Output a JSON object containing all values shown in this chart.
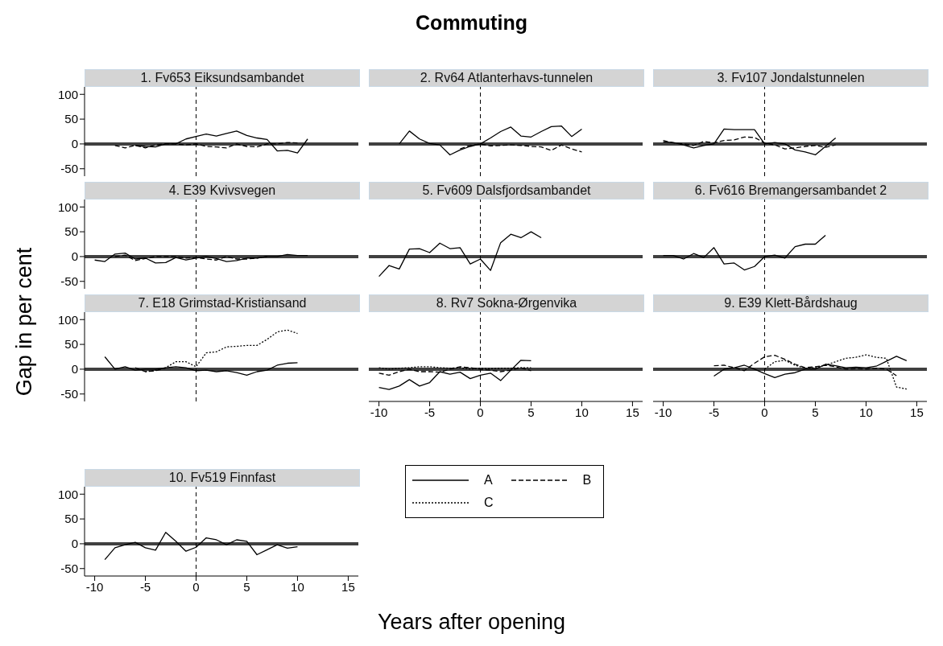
{
  "chart_data": [
    {
      "type": "other",
      "title": "Commuting",
      "xlabel": "Years after opening",
      "ylabel": "Gap in per cent"
    },
    {
      "type": "line",
      "title": "1. Fv653 Eiksundsambandet",
      "xlim": [
        -11,
        16
      ],
      "ylim": [
        -65,
        115
      ],
      "xticks": [
        -10,
        -5,
        0,
        5,
        10,
        15
      ],
      "yticks": [
        -50,
        0,
        50,
        100
      ],
      "tick_labels": "y",
      "ref_lines": [
        {
          "axis": "y",
          "value": 0,
          "color": "#404040",
          "line_style": "solid"
        },
        {
          "axis": "x",
          "value": 0,
          "color": "#000000",
          "line_style": "dashed"
        }
      ],
      "series": [
        {
          "color": "#000000",
          "line_style": "solid",
          "x": [
            -6,
            -5,
            -4,
            -3,
            -2,
            -1,
            0,
            1,
            2,
            3,
            4,
            5,
            6,
            7,
            8,
            9,
            10,
            11
          ],
          "values": [
            -3,
            -5,
            -6,
            0,
            0,
            10,
            15,
            20,
            16,
            21,
            26,
            17,
            12,
            9,
            -14,
            -13,
            -18,
            10
          ]
        },
        {
          "color": "#000000",
          "line_style": "dashed",
          "x": [
            -8,
            -7,
            -6,
            -5,
            -4,
            -3,
            -2,
            -1,
            0,
            1,
            2,
            3,
            4,
            5,
            6,
            7,
            8,
            9,
            10
          ],
          "values": [
            -3,
            -8,
            -3,
            -8,
            -2,
            0,
            0,
            -2,
            0,
            -5,
            -6,
            -8,
            0,
            -5,
            -6,
            0,
            0,
            3,
            2
          ]
        }
      ]
    },
    {
      "type": "line",
      "title": "2. Rv64 Atlanterhavs-tunnelen",
      "xlim": [
        -11,
        16
      ],
      "ylim": [
        -65,
        115
      ],
      "xticks": [
        -10,
        -5,
        0,
        5,
        10,
        15
      ],
      "yticks": [
        -50,
        0,
        50,
        100
      ],
      "tick_labels": false,
      "ref_lines": [
        {
          "axis": "y",
          "value": 0,
          "color": "#404040",
          "line_style": "solid"
        },
        {
          "axis": "x",
          "value": 0,
          "color": "#000000",
          "line_style": "dashed"
        }
      ],
      "series": [
        {
          "color": "#000000",
          "line_style": "solid",
          "x": [
            -8,
            -7,
            -6,
            -5,
            -4,
            -3,
            -2,
            -1,
            0,
            1,
            2,
            3,
            4,
            5,
            6,
            7,
            8,
            9,
            10
          ],
          "values": [
            0,
            26,
            10,
            1,
            -2,
            -22,
            -12,
            -5,
            0,
            12,
            25,
            34,
            16,
            14,
            25,
            35,
            36,
            15,
            30
          ]
        },
        {
          "color": "#000000",
          "line_style": "dashed",
          "x": [
            -2,
            -1,
            0,
            1,
            2,
            3,
            4,
            5,
            6,
            7,
            8,
            9,
            10
          ],
          "values": [
            -10,
            -3,
            0,
            -4,
            -3,
            -2,
            -3,
            -5,
            -6,
            -13,
            -2,
            -10,
            -16
          ]
        }
      ]
    },
    {
      "type": "line",
      "title": "3. Fv107 Jondalstunnelen",
      "xlim": [
        -11,
        16
      ],
      "ylim": [
        -65,
        115
      ],
      "xticks": [
        -10,
        -5,
        0,
        5,
        10,
        15
      ],
      "yticks": [
        -50,
        0,
        50,
        100
      ],
      "tick_labels": false,
      "ref_lines": [
        {
          "axis": "y",
          "value": 0,
          "color": "#404040",
          "line_style": "solid"
        },
        {
          "axis": "x",
          "value": 0,
          "color": "#000000",
          "line_style": "dashed"
        }
      ],
      "series": [
        {
          "color": "#000000",
          "line_style": "solid",
          "x": [
            -10,
            -9,
            -8,
            -7,
            -6,
            -5,
            -4,
            -3,
            -2,
            -1,
            0,
            1,
            2,
            3,
            4,
            5,
            6,
            7
          ],
          "values": [
            4,
            3,
            -2,
            -8,
            -3,
            0,
            30,
            29,
            29,
            29,
            0,
            3,
            0,
            -12,
            -16,
            -22,
            -5,
            12
          ]
        },
        {
          "color": "#000000",
          "line_style": "dashed",
          "x": [
            -10,
            -9,
            -8,
            -7,
            -6,
            -5,
            -4,
            -3,
            -2,
            -1,
            0,
            1,
            2,
            3,
            4,
            5,
            6,
            7
          ],
          "values": [
            7,
            2,
            0,
            -3,
            5,
            2,
            7,
            8,
            14,
            13,
            2,
            -2,
            -10,
            -8,
            -5,
            -3,
            -7,
            -2
          ]
        }
      ]
    },
    {
      "type": "line",
      "title": "4. E39 Kvivsvegen",
      "xlim": [
        -11,
        16
      ],
      "ylim": [
        -65,
        115
      ],
      "xticks": [
        -10,
        -5,
        0,
        5,
        10,
        15
      ],
      "yticks": [
        -50,
        0,
        50,
        100
      ],
      "tick_labels": "y",
      "ref_lines": [
        {
          "axis": "y",
          "value": 0,
          "color": "#404040",
          "line_style": "solid"
        },
        {
          "axis": "x",
          "value": 0,
          "color": "#000000",
          "line_style": "dashed"
        }
      ],
      "series": [
        {
          "color": "#000000",
          "line_style": "solid",
          "x": [
            -10,
            -9,
            -8,
            -7,
            -6,
            -5,
            -4,
            -3,
            -2,
            -1,
            0,
            1,
            2,
            3,
            4,
            5,
            6,
            7,
            8,
            9,
            10,
            11
          ],
          "values": [
            -7,
            -10,
            5,
            7,
            -5,
            -3,
            -13,
            -12,
            -2,
            -7,
            -3,
            0,
            -4,
            -10,
            -8,
            -3,
            -3,
            0,
            0,
            4,
            2,
            2
          ]
        },
        {
          "color": "#000000",
          "line_style": "dashed",
          "x": [
            -8,
            -7,
            -6,
            -5,
            -4,
            -3,
            -2,
            -1,
            0,
            1,
            2,
            3,
            4,
            5,
            6,
            7
          ],
          "values": [
            0,
            3,
            -8,
            -4,
            0,
            0,
            0,
            -3,
            -2,
            -5,
            -7,
            0,
            -5,
            -5,
            -3,
            0
          ]
        }
      ]
    },
    {
      "type": "line",
      "title": "5. Fv609 Dalsfjordsambandet",
      "xlim": [
        -11,
        16
      ],
      "ylim": [
        -65,
        115
      ],
      "xticks": [
        -10,
        -5,
        0,
        5,
        10,
        15
      ],
      "yticks": [
        -50,
        0,
        50,
        100
      ],
      "tick_labels": false,
      "ref_lines": [
        {
          "axis": "y",
          "value": 0,
          "color": "#404040",
          "line_style": "solid"
        },
        {
          "axis": "x",
          "value": 0,
          "color": "#000000",
          "line_style": "dashed"
        }
      ],
      "series": [
        {
          "color": "#000000",
          "line_style": "solid",
          "x": [
            -10,
            -9,
            -8,
            -7,
            -6,
            -5,
            -4,
            -3,
            -2,
            -1,
            0,
            1,
            2,
            3,
            4,
            5,
            6
          ],
          "values": [
            -40,
            -18,
            -25,
            15,
            16,
            8,
            27,
            16,
            18,
            -15,
            -5,
            -28,
            28,
            45,
            38,
            50,
            38
          ]
        }
      ]
    },
    {
      "type": "line",
      "title": "6. Fv616 Bremangersambandet 2",
      "xlim": [
        -11,
        16
      ],
      "ylim": [
        -65,
        115
      ],
      "xticks": [
        -10,
        -5,
        0,
        5,
        10,
        15
      ],
      "yticks": [
        -50,
        0,
        50,
        100
      ],
      "tick_labels": false,
      "ref_lines": [
        {
          "axis": "y",
          "value": 0,
          "color": "#404040",
          "line_style": "solid"
        },
        {
          "axis": "x",
          "value": 0,
          "color": "#000000",
          "line_style": "dashed"
        }
      ],
      "series": [
        {
          "color": "#000000",
          "line_style": "solid",
          "x": [
            -10,
            -9,
            -8,
            -7,
            -6,
            -5,
            -4,
            -3,
            -2,
            -1,
            0,
            1,
            2,
            3,
            4,
            5,
            6
          ],
          "values": [
            2,
            2,
            -5,
            6,
            -2,
            18,
            -15,
            -13,
            -27,
            -20,
            0,
            3,
            -3,
            20,
            25,
            25,
            43
          ]
        }
      ]
    },
    {
      "type": "line",
      "title": "7. E18 Grimstad-Kristiansand",
      "xlim": [
        -11,
        16
      ],
      "ylim": [
        -65,
        115
      ],
      "xticks": [
        -10,
        -5,
        0,
        5,
        10,
        15
      ],
      "yticks": [
        -50,
        0,
        50,
        100
      ],
      "tick_labels": "y",
      "ref_lines": [
        {
          "axis": "y",
          "value": 0,
          "color": "#404040",
          "line_style": "solid"
        },
        {
          "axis": "x",
          "value": 0,
          "color": "#000000",
          "line_style": "dashed"
        }
      ],
      "series": [
        {
          "color": "#000000",
          "line_style": "solid",
          "x": [
            -9,
            -8,
            -7,
            -6,
            -5,
            -4,
            -3,
            -2,
            -1,
            0,
            1,
            2,
            3,
            4,
            5,
            6,
            7,
            8,
            9,
            10
          ],
          "values": [
            25,
            0,
            5,
            -2,
            0,
            0,
            3,
            5,
            3,
            -3,
            -2,
            -5,
            -3,
            -7,
            -12,
            -5,
            -2,
            8,
            12,
            13
          ]
        },
        {
          "color": "#000000",
          "line_style": "dashed",
          "x": [
            -6,
            -5,
            -4,
            -3
          ],
          "values": [
            3,
            -5,
            -3,
            2
          ]
        },
        {
          "color": "#000000",
          "line_style": "dotted",
          "x": [
            -5,
            -4,
            -3,
            -2,
            -1,
            0,
            1,
            2,
            3,
            4,
            5,
            6,
            7,
            8,
            9,
            10
          ],
          "values": [
            -5,
            -2,
            3,
            15,
            15,
            5,
            33,
            35,
            45,
            46,
            48,
            48,
            60,
            75,
            79,
            72
          ]
        }
      ]
    },
    {
      "type": "line",
      "title": "8. Rv7 Sokna-Ørgenvika",
      "xlim": [
        -11,
        16
      ],
      "ylim": [
        -65,
        115
      ],
      "xticks": [
        -10,
        -5,
        0,
        5,
        10,
        15
      ],
      "yticks": [
        -50,
        0,
        50,
        100
      ],
      "tick_labels": "x",
      "ref_lines": [
        {
          "axis": "y",
          "value": 0,
          "color": "#404040",
          "line_style": "solid"
        },
        {
          "axis": "x",
          "value": 0,
          "color": "#000000",
          "line_style": "dashed"
        }
      ],
      "series": [
        {
          "color": "#000000",
          "line_style": "solid",
          "x": [
            -10,
            -9,
            -8,
            -7,
            -6,
            -5,
            -4,
            -3,
            -2,
            -1,
            0,
            1,
            2,
            3,
            4,
            5
          ],
          "values": [
            -37,
            -41,
            -34,
            -21,
            -34,
            -27,
            -5,
            -10,
            -6,
            -19,
            -12,
            -8,
            -23,
            -2,
            18,
            17
          ]
        },
        {
          "color": "#000000",
          "line_style": "dashed",
          "x": [
            -10,
            -9,
            -8,
            -7,
            -6,
            -5,
            -4,
            -3,
            -2,
            -1,
            0,
            1,
            2,
            3,
            4,
            5
          ],
          "values": [
            -8,
            -12,
            -5,
            0,
            -5,
            -5,
            -6,
            0,
            5,
            3,
            0,
            -2,
            -5,
            -2,
            3,
            -3
          ]
        },
        {
          "color": "#000000",
          "line_style": "dotted",
          "x": [
            -10,
            -9,
            -8,
            -7,
            -6,
            -5,
            -4,
            -3,
            -2,
            -1,
            0,
            1,
            2,
            3,
            4,
            5
          ],
          "values": [
            3,
            0,
            2,
            3,
            5,
            5,
            3,
            2,
            3,
            0,
            2,
            1,
            2,
            2,
            3,
            3
          ]
        }
      ]
    },
    {
      "type": "line",
      "title": "9. E39 Klett-Bårdshaug",
      "xlim": [
        -11,
        16
      ],
      "ylim": [
        -65,
        115
      ],
      "xticks": [
        -10,
        -5,
        0,
        5,
        10,
        15
      ],
      "yticks": [
        -50,
        0,
        50,
        100
      ],
      "tick_labels": "x",
      "ref_lines": [
        {
          "axis": "y",
          "value": 0,
          "color": "#404040",
          "line_style": "solid"
        },
        {
          "axis": "x",
          "value": 0,
          "color": "#000000",
          "line_style": "dashed"
        }
      ],
      "series": [
        {
          "color": "#000000",
          "line_style": "solid",
          "x": [
            -5,
            -4,
            -3,
            -2,
            -1,
            0,
            1,
            2,
            3,
            4,
            5,
            6,
            7,
            8,
            9,
            10,
            11,
            12,
            13,
            14
          ],
          "values": [
            -14,
            0,
            3,
            8,
            0,
            -9,
            -17,
            -10,
            -7,
            0,
            0,
            10,
            7,
            3,
            4,
            3,
            6,
            16,
            26,
            17
          ]
        },
        {
          "color": "#000000",
          "line_style": "dashed",
          "x": [
            -5,
            -4,
            -3,
            -2,
            -1,
            0,
            1,
            2,
            3,
            4,
            5,
            6,
            7,
            8,
            9,
            10,
            11,
            12,
            13
          ],
          "values": [
            7,
            8,
            3,
            -3,
            12,
            25,
            28,
            20,
            10,
            3,
            5,
            8,
            5,
            0,
            1,
            0,
            2,
            0,
            -13
          ]
        },
        {
          "color": "#000000",
          "line_style": "dotted",
          "x": [
            0,
            1,
            2,
            3,
            4,
            5,
            6,
            7,
            8,
            9,
            10,
            11,
            12,
            13,
            14
          ],
          "values": [
            0,
            15,
            18,
            8,
            2,
            3,
            8,
            15,
            22,
            24,
            29,
            24,
            22,
            -36,
            -40
          ]
        }
      ]
    },
    {
      "type": "line",
      "title": "10. Fv519 Finnfast",
      "xlim": [
        -11,
        16
      ],
      "ylim": [
        -65,
        115
      ],
      "xticks": [
        -10,
        -5,
        0,
        5,
        10,
        15
      ],
      "yticks": [
        -50,
        0,
        50,
        100
      ],
      "legend": "right",
      "ref_lines": [
        {
          "axis": "y",
          "value": 0,
          "color": "#404040",
          "line_style": "solid"
        },
        {
          "axis": "x",
          "value": 0,
          "color": "#000000",
          "line_style": "dashed"
        }
      ],
      "series": [
        {
          "name": "A",
          "color": "#000000",
          "line_style": "solid",
          "x": [
            -9,
            -8,
            -7,
            -6,
            -5,
            -4,
            -3,
            -2,
            -1,
            0,
            1,
            2,
            3,
            4,
            5,
            6,
            7,
            8,
            9,
            10
          ],
          "values": [
            -32,
            -8,
            -2,
            3,
            -8,
            -13,
            23,
            5,
            -15,
            -7,
            12,
            8,
            -2,
            8,
            5,
            -22,
            -12,
            -2,
            -9,
            -6
          ]
        },
        {
          "name": "B",
          "color": "#000000",
          "line_style": "dashed"
        },
        {
          "name": "C",
          "color": "#000000",
          "line_style": "dotted"
        }
      ]
    }
  ]
}
